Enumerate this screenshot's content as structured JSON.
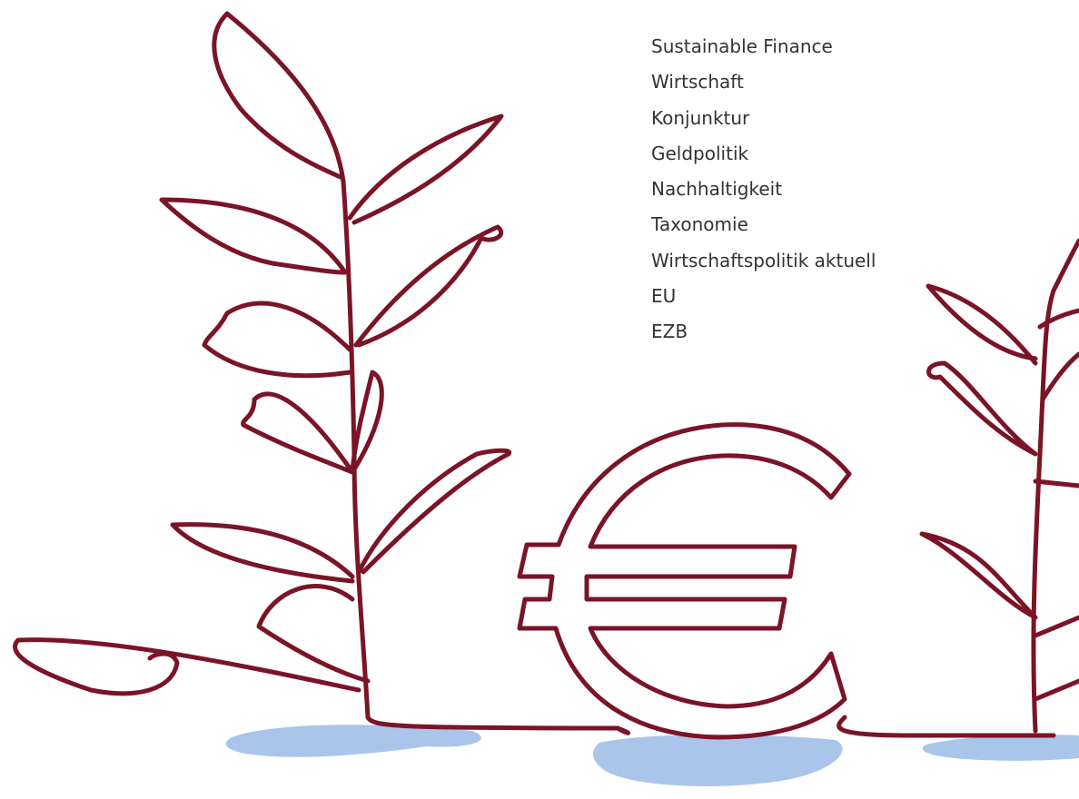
{
  "tags": [
    "Sustainable Finance",
    "Wirtschaft",
    "Konjunktur",
    "Geldpolitik",
    "Nachhaltigkeit",
    "Taxonomie",
    "Wirtschaftspolitik aktuell",
    "EU",
    "EZB"
  ]
}
